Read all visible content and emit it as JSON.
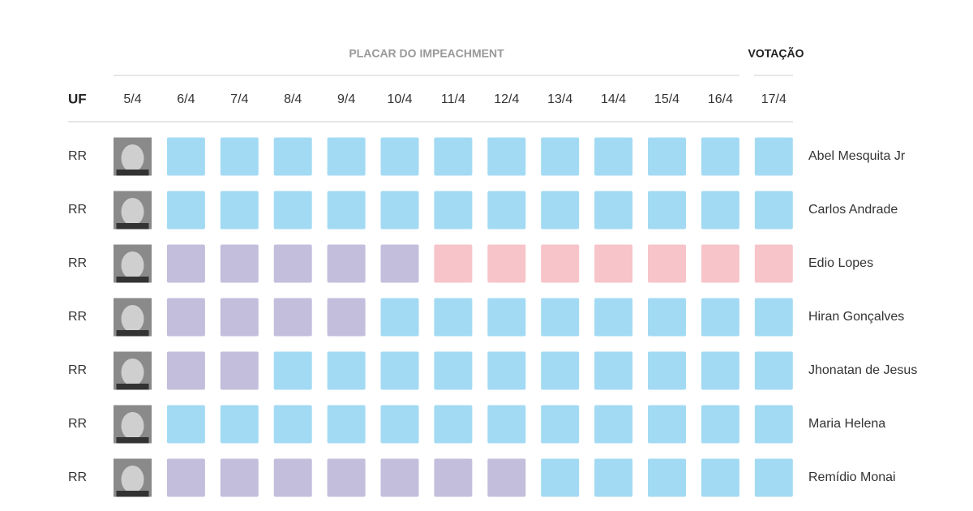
{
  "header": {
    "group_label": "PLACAR DO IMPEACHMENT",
    "vote_label": "VOTAÇÃO",
    "uf_label": "UF",
    "dates": [
      "5/4",
      "6/4",
      "7/4",
      "8/4",
      "9/4",
      "10/4",
      "11/4",
      "12/4",
      "13/4",
      "14/4",
      "15/4",
      "16/4",
      "17/4"
    ]
  },
  "rows": [
    {
      "uf": "RR",
      "name": "Abel Mesquita Jr",
      "cells": [
        "#a3daf3",
        "#a3daf3",
        "#a3daf3",
        "#a3daf3",
        "#a3daf3",
        "#a3daf3",
        "#a3daf3",
        "#a3daf3",
        "#a3daf3",
        "#a3daf3",
        "#a3daf3",
        "#a3daf3"
      ]
    },
    {
      "uf": "RR",
      "name": "Carlos Andrade",
      "cells": [
        "#a3daf3",
        "#a3daf3",
        "#a3daf3",
        "#a3daf3",
        "#a3daf3",
        "#a3daf3",
        "#a3daf3",
        "#a3daf3",
        "#a3daf3",
        "#a3daf3",
        "#a3daf3",
        "#a3daf3"
      ]
    },
    {
      "uf": "RR",
      "name": "Edio Lopes",
      "cells": [
        "#c4bedd",
        "#c4bedd",
        "#c4bedd",
        "#c4bedd",
        "#c4bedd",
        "#f7c4c9",
        "#f7c4c9",
        "#f7c4c9",
        "#f7c4c9",
        "#f7c4c9",
        "#f7c4c9",
        "#f7c4c9"
      ]
    },
    {
      "uf": "RR",
      "name": "Hiran Gonçalves",
      "cells": [
        "#c4bedd",
        "#c4bedd",
        "#c4bedd",
        "#c4bedd",
        "#a3daf3",
        "#a3daf3",
        "#a3daf3",
        "#a3daf3",
        "#a3daf3",
        "#a3daf3",
        "#a3daf3",
        "#a3daf3"
      ]
    },
    {
      "uf": "RR",
      "name": "Jhonatan de Jesus",
      "cells": [
        "#c4bedd",
        "#c4bedd",
        "#a3daf3",
        "#a3daf3",
        "#a3daf3",
        "#a3daf3",
        "#a3daf3",
        "#a3daf3",
        "#a3daf3",
        "#a3daf3",
        "#a3daf3",
        "#a3daf3"
      ]
    },
    {
      "uf": "RR",
      "name": "Maria Helena",
      "cells": [
        "#a3daf3",
        "#a3daf3",
        "#a3daf3",
        "#a3daf3",
        "#a3daf3",
        "#a3daf3",
        "#a3daf3",
        "#a3daf3",
        "#a3daf3",
        "#a3daf3",
        "#a3daf3",
        "#a3daf3"
      ]
    },
    {
      "uf": "RR",
      "name": "Remídio Monai",
      "cells": [
        "#c4bedd",
        "#c4bedd",
        "#c4bedd",
        "#c4bedd",
        "#c4bedd",
        "#c4bedd",
        "#c4bedd",
        "#a3daf3",
        "#a3daf3",
        "#a3daf3",
        "#a3daf3",
        "#a3daf3"
      ]
    }
  ]
}
